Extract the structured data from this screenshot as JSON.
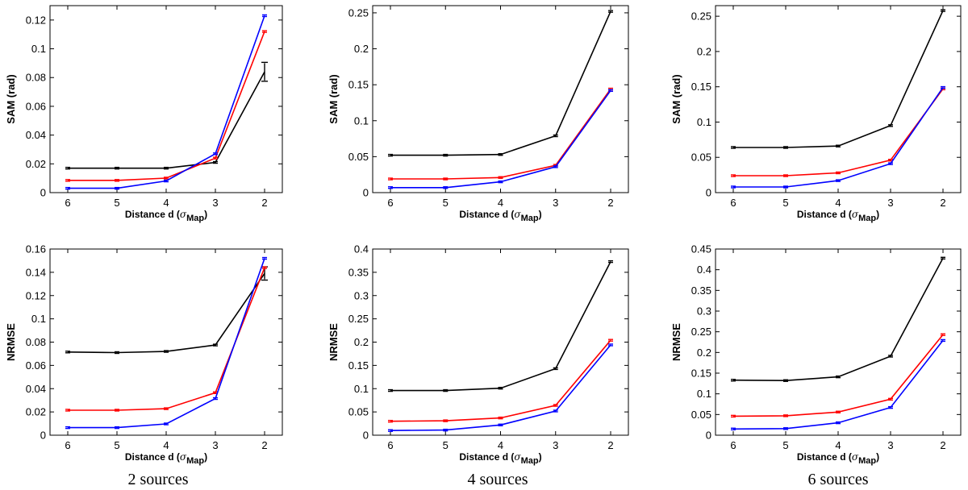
{
  "captions": [
    "2 sources",
    "4 sources",
    "6 sources"
  ],
  "chart_data": [
    {
      "type": "line",
      "ylabel": "SAM (rad)",
      "xlabel": "Distance d",
      "xlabel_sub": "Map",
      "x": [
        6,
        5,
        4,
        3,
        2
      ],
      "yticks": [
        "0",
        "0.02",
        "0.04",
        "0.06",
        "0.08",
        "0.1",
        "0.12"
      ],
      "ylim": [
        0,
        0.13
      ],
      "series": [
        {
          "name": "black",
          "color": "#000000",
          "values": [
            0.017,
            0.017,
            0.017,
            0.021,
            0.084
          ],
          "err": [
            0,
            0,
            0,
            0,
            0.006
          ]
        },
        {
          "name": "red",
          "color": "#ff0000",
          "values": [
            0.0085,
            0.0085,
            0.0101,
            0.024,
            0.112
          ],
          "err": [
            0,
            0,
            0,
            0,
            0
          ]
        },
        {
          "name": "blue",
          "color": "#0000ff",
          "values": [
            0.003,
            0.003,
            0.0081,
            0.027,
            0.123
          ],
          "err": [
            0,
            0,
            0,
            0,
            0
          ]
        }
      ]
    },
    {
      "type": "line",
      "ylabel": "SAM (rad)",
      "xlabel": "Distance d",
      "xlabel_sub": "Map",
      "x": [
        6,
        5,
        4,
        3,
        2
      ],
      "yticks": [
        "0",
        "0.05",
        "0.1",
        "0.15",
        "0.2",
        "0.25"
      ],
      "ylim": [
        0,
        0.26
      ],
      "series": [
        {
          "name": "black",
          "color": "#000000",
          "values": [
            0.052,
            0.052,
            0.053,
            0.079,
            0.252
          ],
          "err": [
            0,
            0,
            0,
            0,
            0
          ]
        },
        {
          "name": "red",
          "color": "#ff0000",
          "values": [
            0.019,
            0.019,
            0.021,
            0.038,
            0.144
          ],
          "err": [
            0,
            0,
            0,
            0,
            0
          ]
        },
        {
          "name": "blue",
          "color": "#0000ff",
          "values": [
            0.007,
            0.007,
            0.015,
            0.036,
            0.142
          ],
          "err": [
            0,
            0,
            0,
            0,
            0
          ]
        }
      ]
    },
    {
      "type": "line",
      "ylabel": "SAM (rad)",
      "xlabel": "Distance d",
      "xlabel_sub": "Map",
      "x": [
        6,
        5,
        4,
        3,
        2
      ],
      "yticks": [
        "0",
        "0.05",
        "0.1",
        "0.15",
        "0.2",
        "0.25"
      ],
      "ylim": [
        0,
        0.265
      ],
      "series": [
        {
          "name": "black",
          "color": "#000000",
          "values": [
            0.064,
            0.064,
            0.066,
            0.095,
            0.258
          ],
          "err": [
            0,
            0,
            0,
            0,
            0
          ]
        },
        {
          "name": "red",
          "color": "#ff0000",
          "values": [
            0.024,
            0.024,
            0.028,
            0.046,
            0.147
          ],
          "err": [
            0,
            0,
            0,
            0,
            0
          ]
        },
        {
          "name": "blue",
          "color": "#0000ff",
          "values": [
            0.008,
            0.008,
            0.017,
            0.041,
            0.149
          ],
          "err": [
            0,
            0,
            0,
            0,
            0
          ]
        }
      ]
    },
    {
      "type": "line",
      "ylabel": "NRMSE",
      "xlabel": "Distance d",
      "xlabel_sub": "Map",
      "x": [
        6,
        5,
        4,
        3,
        2
      ],
      "yticks": [
        "0",
        "0.02",
        "0.04",
        "0.06",
        "0.08",
        "0.1",
        "0.12",
        "0.14",
        "0.16"
      ],
      "ylim": [
        0,
        0.16
      ],
      "series": [
        {
          "name": "black",
          "color": "#000000",
          "values": [
            0.0715,
            0.071,
            0.072,
            0.0775,
            0.139
          ],
          "err": [
            0,
            0,
            0,
            0,
            0.005
          ]
        },
        {
          "name": "red",
          "color": "#ff0000",
          "values": [
            0.0215,
            0.0215,
            0.0228,
            0.0365,
            0.144
          ],
          "err": [
            0,
            0,
            0,
            0,
            0
          ]
        },
        {
          "name": "blue",
          "color": "#0000ff",
          "values": [
            0.0065,
            0.0065,
            0.0097,
            0.0315,
            0.152
          ],
          "err": [
            0,
            0,
            0,
            0,
            0
          ]
        }
      ]
    },
    {
      "type": "line",
      "ylabel": "NRMSE",
      "xlabel": "Distance d",
      "xlabel_sub": "Map",
      "x": [
        6,
        5,
        4,
        3,
        2
      ],
      "yticks": [
        "0",
        "0.05",
        "0.1",
        "0.15",
        "0.2",
        "0.25",
        "0.3",
        "0.35",
        "0.4"
      ],
      "ylim": [
        0,
        0.4
      ],
      "series": [
        {
          "name": "black",
          "color": "#000000",
          "values": [
            0.096,
            0.096,
            0.101,
            0.143,
            0.373
          ],
          "err": [
            0,
            0,
            0,
            0,
            0
          ]
        },
        {
          "name": "red",
          "color": "#ff0000",
          "values": [
            0.03,
            0.031,
            0.037,
            0.064,
            0.204
          ],
          "err": [
            0,
            0,
            0,
            0,
            0
          ]
        },
        {
          "name": "blue",
          "color": "#0000ff",
          "values": [
            0.01,
            0.011,
            0.022,
            0.052,
            0.194
          ],
          "err": [
            0,
            0,
            0,
            0,
            0
          ]
        }
      ]
    },
    {
      "type": "line",
      "ylabel": "NRMSE",
      "xlabel": "Distance d",
      "xlabel_sub": "Map",
      "x": [
        6,
        5,
        4,
        3,
        2
      ],
      "yticks": [
        "0",
        "0.05",
        "0.1",
        "0.15",
        "0.2",
        "0.25",
        "0.3",
        "0.35",
        "0.4",
        "0.45"
      ],
      "ylim": [
        0,
        0.45
      ],
      "series": [
        {
          "name": "black",
          "color": "#000000",
          "values": [
            0.133,
            0.132,
            0.141,
            0.191,
            0.428
          ],
          "err": [
            0,
            0,
            0,
            0,
            0
          ]
        },
        {
          "name": "red",
          "color": "#ff0000",
          "values": [
            0.046,
            0.047,
            0.056,
            0.087,
            0.243
          ],
          "err": [
            0,
            0,
            0,
            0,
            0
          ]
        },
        {
          "name": "blue",
          "color": "#0000ff",
          "values": [
            0.015,
            0.016,
            0.03,
            0.067,
            0.229
          ],
          "err": [
            0,
            0,
            0,
            0,
            0
          ]
        }
      ]
    }
  ]
}
